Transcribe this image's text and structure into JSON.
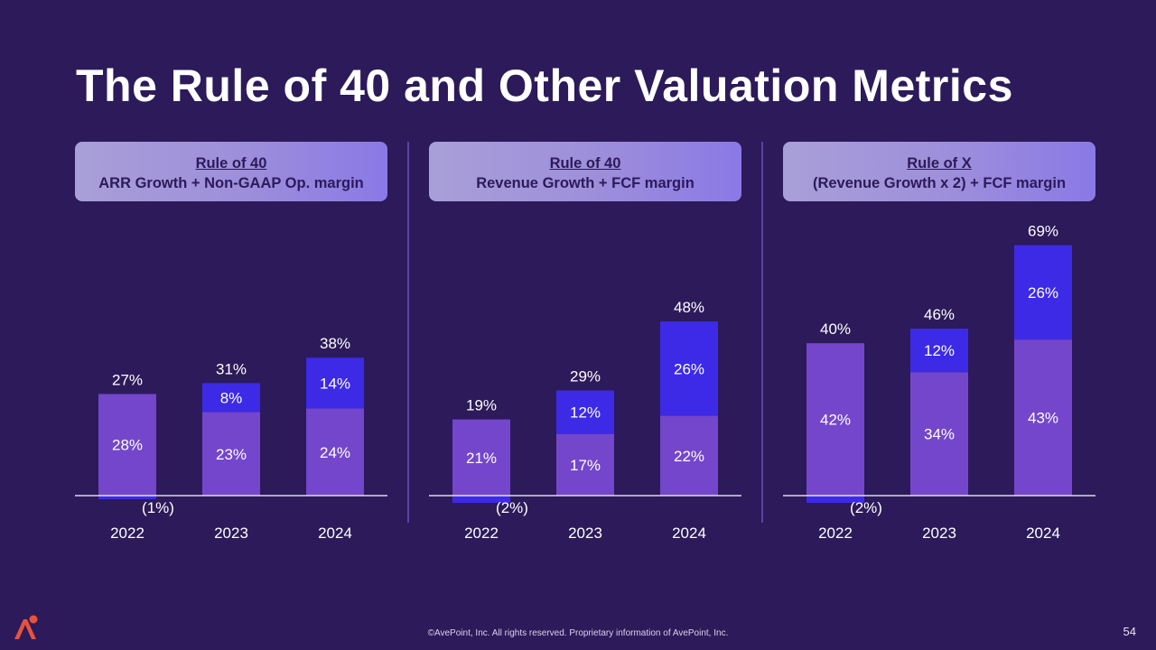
{
  "slide": {
    "title": "The Rule of 40 and Other Valuation Metrics",
    "footer": "©AvePoint, Inc. All rights reserved. Proprietary information of AvePoint, Inc.",
    "page_number": "54"
  },
  "colors": {
    "base_bar": "#7446cc",
    "top_bar": "#3d2ae6",
    "axis": "#ffffff"
  },
  "chart_data": [
    {
      "type": "bar",
      "stacked": true,
      "title": "Rule of 40",
      "subtitle": "ARR Growth + Non-GAAP Op. margin",
      "categories": [
        "2022",
        "2023",
        "2024"
      ],
      "series": [
        {
          "name": "ARR Growth",
          "values": [
            28,
            23,
            24
          ],
          "labels": [
            "28%",
            "23%",
            "24%"
          ]
        },
        {
          "name": "Non-GAAP Op. margin",
          "values": [
            -1,
            8,
            14
          ],
          "labels": [
            "(1%)",
            "8%",
            "14%"
          ]
        }
      ],
      "totals": [
        27,
        31,
        38
      ],
      "total_labels": [
        "27%",
        "31%",
        "38%"
      ],
      "ylim": [
        -3,
        72
      ]
    },
    {
      "type": "bar",
      "stacked": true,
      "title": "Rule of 40",
      "subtitle": "Revenue Growth + FCF margin",
      "categories": [
        "2022",
        "2023",
        "2024"
      ],
      "series": [
        {
          "name": "Revenue Growth",
          "values": [
            21,
            17,
            22
          ],
          "labels": [
            "21%",
            "17%",
            "22%"
          ]
        },
        {
          "name": "FCF margin",
          "values": [
            -2,
            12,
            26
          ],
          "labels": [
            "(2%)",
            "12%",
            "26%"
          ]
        }
      ],
      "totals": [
        19,
        29,
        48
      ],
      "total_labels": [
        "19%",
        "29%",
        "48%"
      ],
      "ylim": [
        -3,
        72
      ]
    },
    {
      "type": "bar",
      "stacked": true,
      "title": "Rule of X",
      "subtitle": "(Revenue Growth x 2) + FCF margin",
      "categories": [
        "2022",
        "2023",
        "2024"
      ],
      "series": [
        {
          "name": "Revenue Growth x 2",
          "values": [
            42,
            34,
            43
          ],
          "labels": [
            "42%",
            "34%",
            "43%"
          ]
        },
        {
          "name": "FCF margin",
          "values": [
            -2,
            12,
            26
          ],
          "labels": [
            "(2%)",
            "12%",
            "26%"
          ]
        }
      ],
      "totals": [
        40,
        46,
        69
      ],
      "total_labels": [
        "40%",
        "46%",
        "69%"
      ],
      "ylim": [
        -3,
        72
      ]
    }
  ]
}
